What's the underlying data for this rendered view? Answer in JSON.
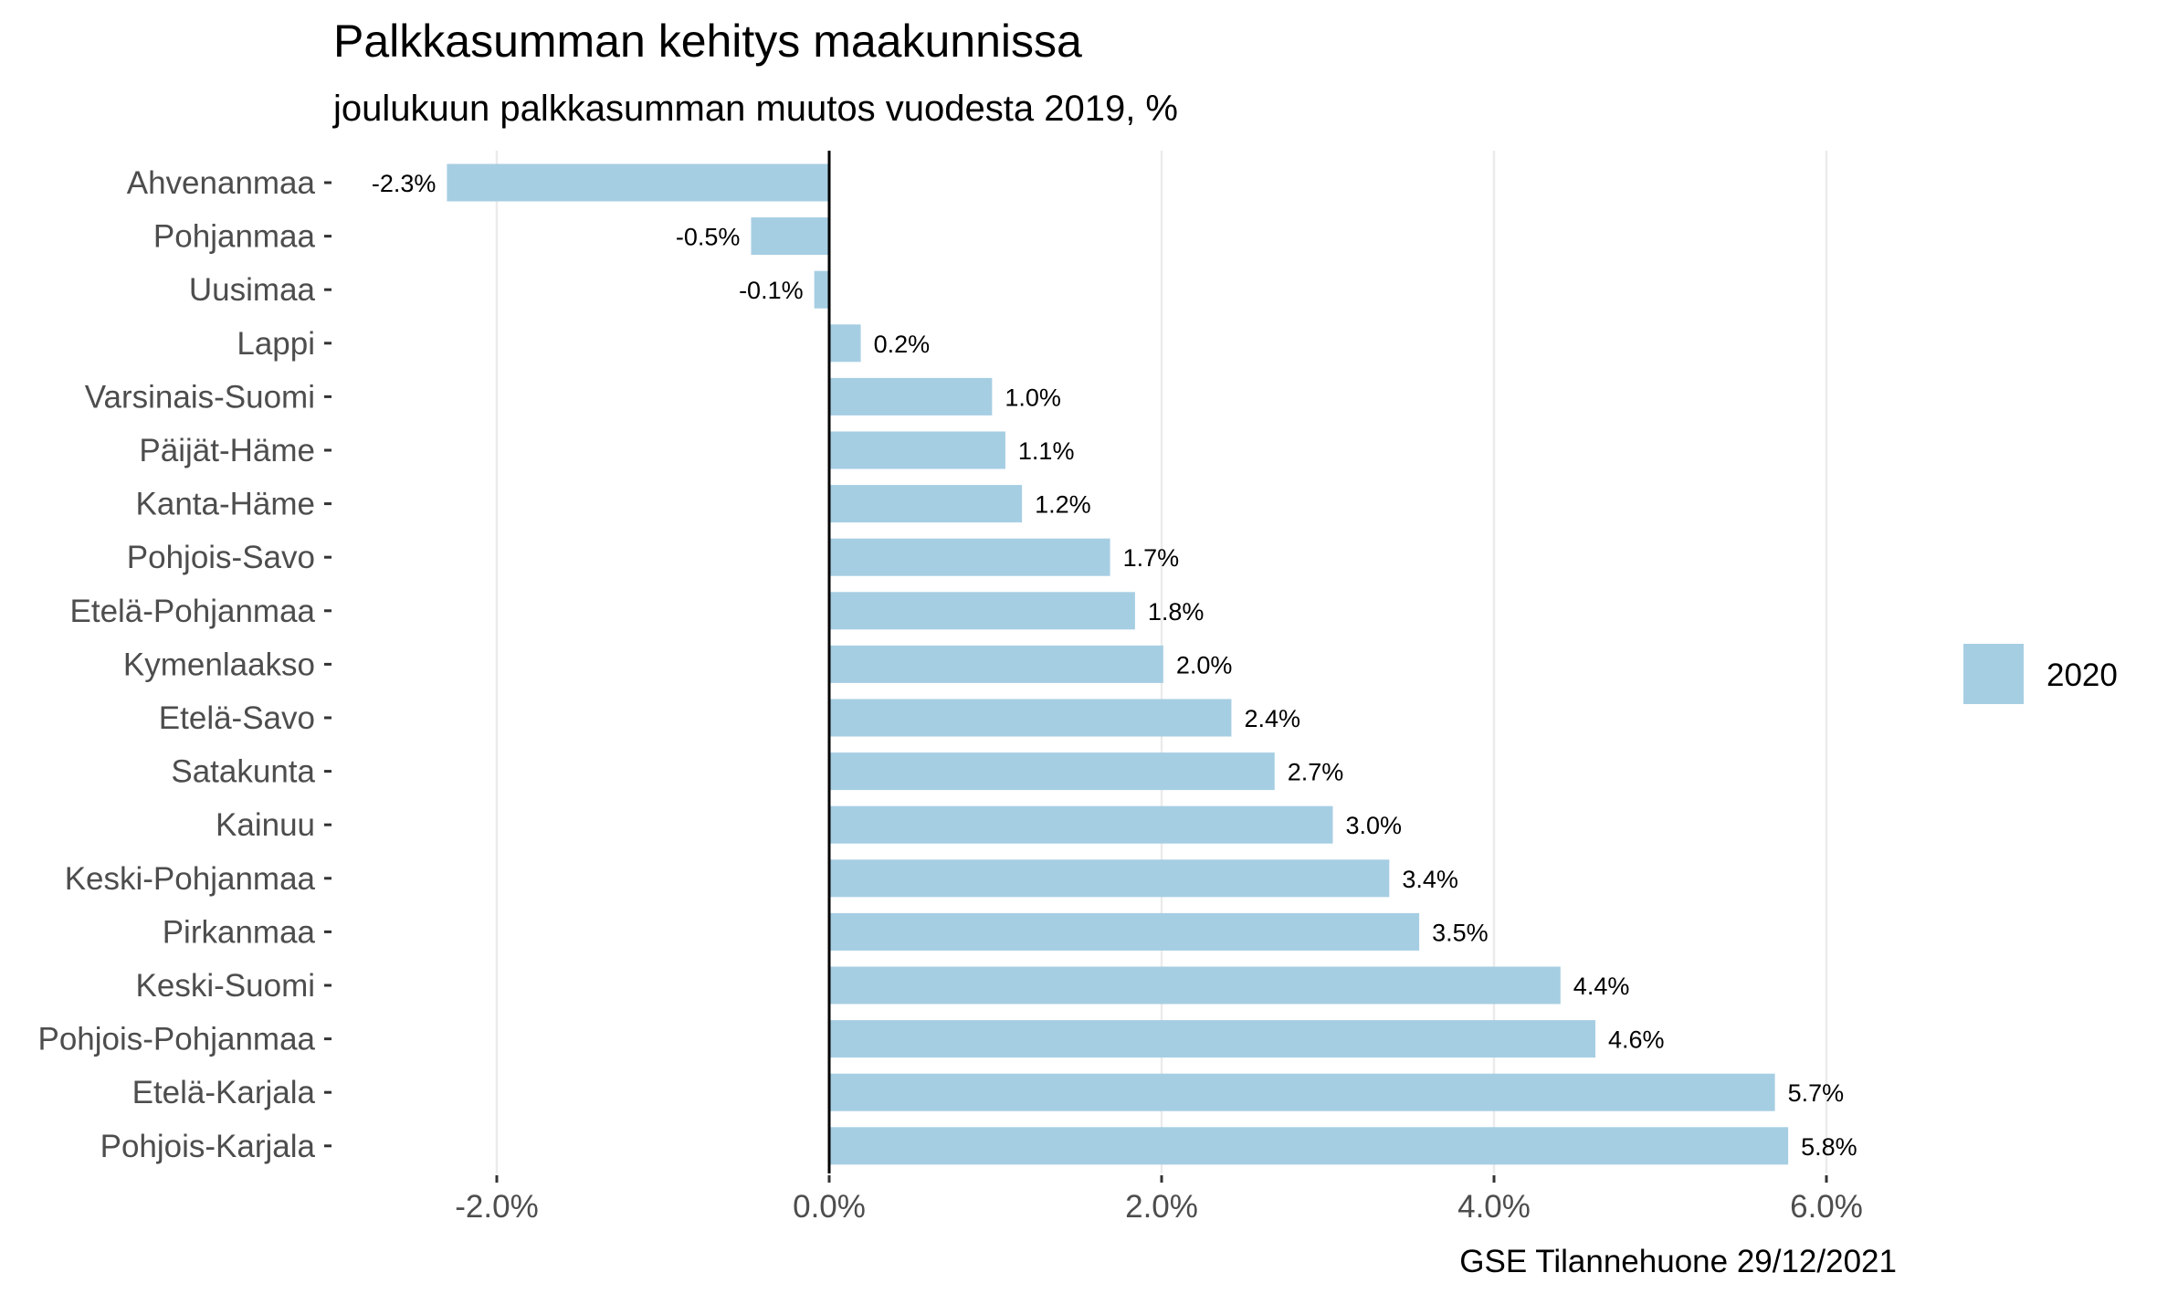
{
  "chart_data": {
    "type": "bar",
    "orientation": "horizontal",
    "title": "Palkkasumman kehitys maakunnissa",
    "subtitle": "joulukuun palkkasumman muutos vuodesta 2019, %",
    "caption": "GSE Tilannehuone 29/12/2021",
    "categories": [
      "Ahvenanmaa",
      "Pohjanmaa",
      "Uusimaa",
      "Lappi",
      "Varsinais-Suomi",
      "Päijät-Häme",
      "Kanta-Häme",
      "Pohjois-Savo",
      "Etelä-Pohjanmaa",
      "Kymenlaakso",
      "Etelä-Savo",
      "Satakunta",
      "Kainuu",
      "Keski-Pohjanmaa",
      "Pirkanmaa",
      "Keski-Suomi",
      "Pohjois-Pohjanmaa",
      "Etelä-Karjala",
      "Pohjois-Karjala"
    ],
    "series": [
      {
        "name": "2020",
        "color": "#a6cee3",
        "values": [
          -2.3,
          -0.47,
          -0.09,
          0.19,
          0.98,
          1.06,
          1.16,
          1.69,
          1.84,
          2.01,
          2.42,
          2.68,
          3.03,
          3.37,
          3.55,
          4.4,
          4.61,
          5.69,
          5.77
        ],
        "value_labels": [
          "-2.3%",
          "-0.5%",
          "-0.1%",
          "0.2%",
          "1.0%",
          "1.1%",
          "1.2%",
          "1.7%",
          "1.8%",
          "2.0%",
          "2.4%",
          "2.7%",
          "3.0%",
          "3.4%",
          "3.5%",
          "4.4%",
          "4.6%",
          "5.7%",
          "5.8%"
        ]
      }
    ],
    "x_ticks": [
      -2.0,
      0.0,
      2.0,
      4.0,
      6.0
    ],
    "x_tick_labels": [
      "-2.0%",
      "0.0%",
      "2.0%",
      "4.0%",
      "6.0%"
    ],
    "xlim": [
      -3.0,
      6.55
    ],
    "grid": "vertical major gridlines",
    "zero_line_color": "#000000",
    "legend_position": "right"
  }
}
